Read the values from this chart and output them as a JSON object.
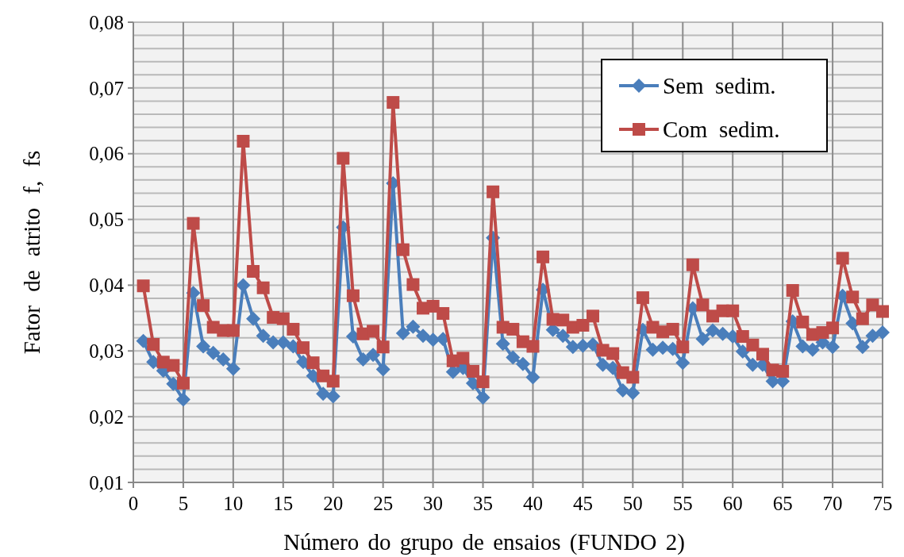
{
  "chart_data": {
    "type": "line",
    "xlabel": "Número do grupo de ensaios (FUNDO 2)",
    "ylabel": "Fator de atrito f, fs",
    "x": [
      1,
      2,
      3,
      4,
      5,
      6,
      7,
      8,
      9,
      10,
      11,
      12,
      13,
      14,
      15,
      16,
      17,
      18,
      19,
      20,
      21,
      22,
      23,
      24,
      25,
      26,
      27,
      28,
      29,
      30,
      31,
      32,
      33,
      34,
      35,
      36,
      37,
      38,
      39,
      40,
      41,
      42,
      43,
      44,
      45,
      46,
      47,
      48,
      49,
      50,
      51,
      52,
      53,
      54,
      55,
      56,
      57,
      58,
      59,
      60,
      61,
      62,
      63,
      64,
      65,
      66,
      67,
      68,
      69,
      70,
      71,
      72,
      73,
      74,
      75
    ],
    "series": [
      {
        "name": "Sem  sedim.",
        "color": "#4a7ebb",
        "marker": "diamond",
        "values": [
          0.0315,
          0.0283,
          0.027,
          0.025,
          0.0226,
          0.0388,
          0.0307,
          0.0297,
          0.0287,
          0.0273,
          0.04,
          0.0349,
          0.0323,
          0.0313,
          0.0313,
          0.0307,
          0.0283,
          0.0262,
          0.0235,
          0.0231,
          0.0488,
          0.0322,
          0.0287,
          0.0294,
          0.0272,
          0.0555,
          0.0327,
          0.0337,
          0.0323,
          0.0317,
          0.0318,
          0.0268,
          0.0274,
          0.0251,
          0.0229,
          0.0472,
          0.0311,
          0.029,
          0.028,
          0.026,
          0.0393,
          0.0332,
          0.0323,
          0.0306,
          0.0308,
          0.031,
          0.0279,
          0.0274,
          0.024,
          0.0236,
          0.0332,
          0.0302,
          0.0305,
          0.0303,
          0.0282,
          0.0365,
          0.0318,
          0.0331,
          0.0326,
          0.0322,
          0.0299,
          0.0279,
          0.0279,
          0.0254,
          0.0254,
          0.0345,
          0.0307,
          0.0302,
          0.0313,
          0.0306,
          0.0384,
          0.0342,
          0.0306,
          0.0323,
          0.0328
        ]
      },
      {
        "name": "Com  sedim.",
        "color": "#be4b48",
        "marker": "square",
        "values": [
          0.0399,
          0.031,
          0.0283,
          0.0278,
          0.0251,
          0.0494,
          0.0369,
          0.0336,
          0.0331,
          0.0331,
          0.0619,
          0.0421,
          0.0396,
          0.0351,
          0.0349,
          0.0333,
          0.0305,
          0.0282,
          0.0262,
          0.0254,
          0.0593,
          0.0384,
          0.0326,
          0.033,
          0.0306,
          0.0678,
          0.0454,
          0.0401,
          0.0365,
          0.0368,
          0.0357,
          0.0285,
          0.0289,
          0.0269,
          0.0253,
          0.0542,
          0.0336,
          0.0333,
          0.0314,
          0.0307,
          0.0443,
          0.0348,
          0.0347,
          0.0336,
          0.0339,
          0.0353,
          0.0301,
          0.0296,
          0.0267,
          0.026,
          0.0381,
          0.0336,
          0.0329,
          0.0333,
          0.0306,
          0.0431,
          0.037,
          0.0353,
          0.0361,
          0.0361,
          0.0322,
          0.0309,
          0.0295,
          0.0271,
          0.0269,
          0.0392,
          0.0344,
          0.0325,
          0.0328,
          0.0335,
          0.0441,
          0.0382,
          0.0349,
          0.037,
          0.036
        ]
      }
    ],
    "xlim": [
      0,
      75
    ],
    "xticks": [
      0,
      5,
      10,
      15,
      20,
      25,
      30,
      35,
      40,
      45,
      50,
      55,
      60,
      65,
      70,
      75
    ],
    "ylim": [
      0.01,
      0.08
    ],
    "yticks": [
      {
        "value": 0.01,
        "label": "0,01"
      },
      {
        "value": 0.012,
        "label": null
      },
      {
        "value": 0.014,
        "label": null
      },
      {
        "value": 0.016,
        "label": null
      },
      {
        "value": 0.018,
        "label": null
      },
      {
        "value": 0.02,
        "label": "0,02"
      },
      {
        "value": 0.022,
        "label": null
      },
      {
        "value": 0.024,
        "label": null
      },
      {
        "value": 0.026,
        "label": null
      },
      {
        "value": 0.028,
        "label": null
      },
      {
        "value": 0.03,
        "label": "0,03"
      },
      {
        "value": 0.032,
        "label": null
      },
      {
        "value": 0.034,
        "label": null
      },
      {
        "value": 0.036,
        "label": null
      },
      {
        "value": 0.038,
        "label": null
      },
      {
        "value": 0.04,
        "label": "0,04"
      },
      {
        "value": 0.042,
        "label": null
      },
      {
        "value": 0.044,
        "label": null
      },
      {
        "value": 0.046,
        "label": null
      },
      {
        "value": 0.048,
        "label": null
      },
      {
        "value": 0.05,
        "label": "0,05"
      },
      {
        "value": 0.052,
        "label": null
      },
      {
        "value": 0.054,
        "label": null
      },
      {
        "value": 0.056,
        "label": null
      },
      {
        "value": 0.058,
        "label": null
      },
      {
        "value": 0.06,
        "label": "0,06"
      },
      {
        "value": 0.062,
        "label": null
      },
      {
        "value": 0.064,
        "label": null
      },
      {
        "value": 0.066,
        "label": null
      },
      {
        "value": 0.068,
        "label": null
      },
      {
        "value": 0.07,
        "label": "0,07"
      },
      {
        "value": 0.072,
        "label": null
      },
      {
        "value": 0.074,
        "label": null
      },
      {
        "value": 0.076,
        "label": null
      },
      {
        "value": 0.078,
        "label": null
      },
      {
        "value": 0.08,
        "label": "0,08"
      }
    ],
    "grid": true,
    "legend": "top right",
    "line_style": "solid"
  }
}
